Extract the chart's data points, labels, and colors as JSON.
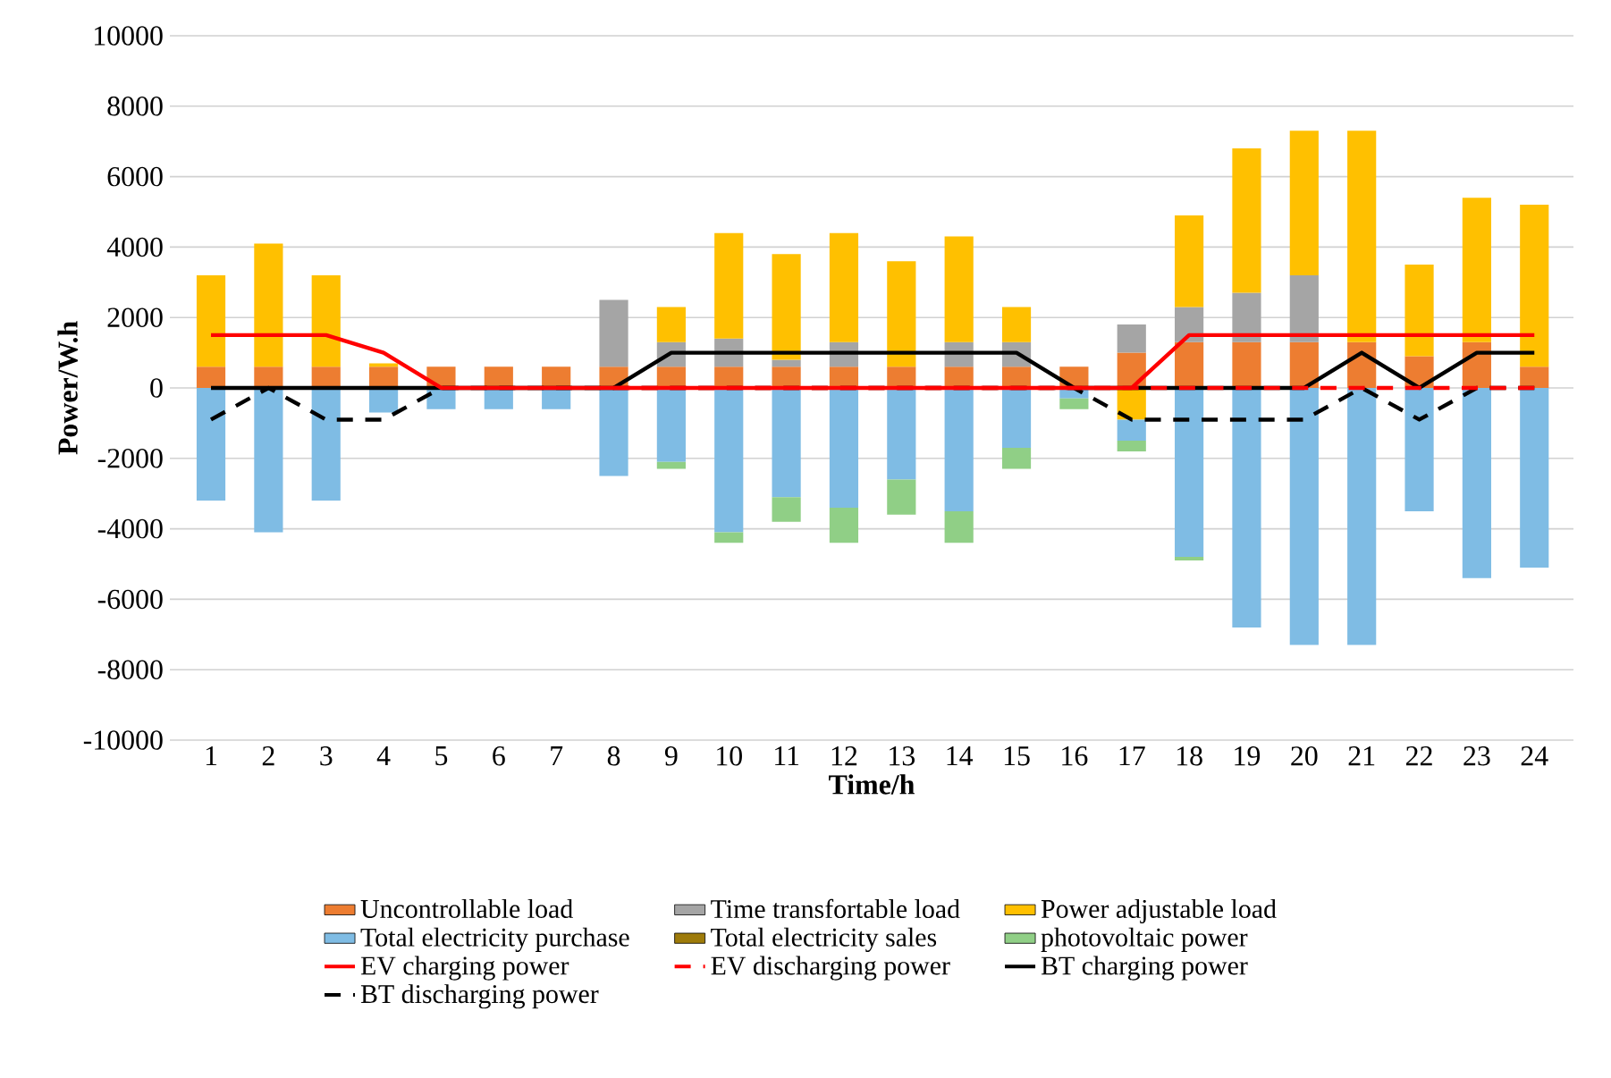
{
  "chart_data": {
    "type": "bar",
    "stacked": true,
    "xlabel": "Time/h",
    "ylabel": "Power/W.h",
    "categories": [
      "1",
      "2",
      "3",
      "4",
      "5",
      "6",
      "7",
      "8",
      "9",
      "10",
      "11",
      "12",
      "13",
      "14",
      "15",
      "16",
      "17",
      "18",
      "19",
      "20",
      "21",
      "22",
      "23",
      "24"
    ],
    "ylim": [
      -10000,
      10000
    ],
    "yticks": [
      -10000,
      -8000,
      -6000,
      -4000,
      -2000,
      0,
      2000,
      4000,
      6000,
      8000,
      10000
    ],
    "grid": "y",
    "legend": "bottom",
    "marker": "none",
    "series": [
      {
        "name": "Uncontrollable load",
        "color": "#ed7d31",
        "values": [
          600,
          600,
          600,
          600,
          600,
          600,
          600,
          600,
          600,
          600,
          600,
          600,
          600,
          600,
          600,
          600,
          1000,
          1300,
          1300,
          1300,
          1300,
          900,
          1300,
          600
        ]
      },
      {
        "name": "Time transfortable load",
        "color": "#a5a5a5",
        "values": [
          0,
          0,
          0,
          0,
          0,
          0,
          0,
          1900,
          700,
          800,
          200,
          700,
          0,
          700,
          700,
          0,
          800,
          1000,
          1400,
          1900,
          0,
          0,
          0,
          0
        ]
      },
      {
        "name": "Power adjustable load",
        "color": "#ffc000",
        "values": [
          2600,
          3500,
          2600,
          100,
          0,
          0,
          0,
          0,
          1000,
          3000,
          3000,
          3100,
          3000,
          3000,
          1000,
          0,
          -900,
          2600,
          4100,
          4100,
          6000,
          2600,
          4100,
          4600
        ]
      },
      {
        "name": "Total electricity purchase",
        "color": "#7fbce4",
        "values": [
          -3200,
          -4100,
          -3200,
          -700,
          -600,
          -600,
          -600,
          -2500,
          -2100,
          -4100,
          -3100,
          -3400,
          -2600,
          -3500,
          -1700,
          -300,
          -600,
          -4800,
          -6800,
          -7300,
          -7300,
          -3500,
          -5400,
          -5100
        ]
      },
      {
        "name": "Total electricity sales",
        "color": "#9e7b0a",
        "values": [
          0,
          0,
          0,
          0,
          0,
          0,
          0,
          0,
          0,
          0,
          0,
          0,
          0,
          0,
          0,
          0,
          0,
          0,
          0,
          0,
          0,
          0,
          0,
          0
        ]
      },
      {
        "name": "photovoltaic power",
        "color": "#90cf86",
        "values": [
          0,
          0,
          0,
          0,
          0,
          0,
          0,
          0,
          -200,
          -300,
          -700,
          -1000,
          -1000,
          -900,
          -600,
          -300,
          -300,
          -100,
          0,
          0,
          0,
          0,
          0,
          0
        ]
      },
      {
        "name": "EV charging power",
        "type": "line",
        "line_style": "solid",
        "color": "#ff0000",
        "values": [
          1500,
          1500,
          1500,
          1000,
          0,
          0,
          0,
          0,
          0,
          0,
          0,
          0,
          0,
          0,
          0,
          0,
          0,
          1500,
          1500,
          1500,
          1500,
          1500,
          1500,
          1500
        ]
      },
      {
        "name": "EV discharging power",
        "type": "line",
        "line_style": "dashed",
        "color": "#ff0000",
        "values": [
          null,
          null,
          null,
          null,
          null,
          null,
          null,
          0,
          0,
          0,
          0,
          0,
          0,
          0,
          0,
          0,
          0,
          0,
          0,
          0,
          0,
          0,
          0,
          0
        ]
      },
      {
        "name": "BT charging power",
        "type": "line",
        "line_style": "solid",
        "color": "#000000",
        "values": [
          0,
          0,
          0,
          0,
          0,
          0,
          0,
          0,
          1000,
          1000,
          1000,
          1000,
          1000,
          1000,
          1000,
          0,
          0,
          0,
          0,
          0,
          1000,
          0,
          1000,
          1000
        ]
      },
      {
        "name": "BT discharging power",
        "type": "line",
        "line_style": "dashed",
        "color": "#000000",
        "values": [
          -900,
          0,
          -900,
          -900,
          0,
          0,
          0,
          0,
          0,
          0,
          0,
          0,
          0,
          0,
          0,
          0,
          -900,
          -900,
          -900,
          -900,
          0,
          -900,
          0,
          0
        ]
      }
    ]
  }
}
